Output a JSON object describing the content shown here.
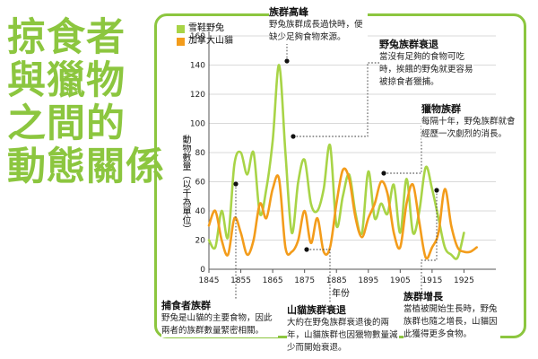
{
  "title_lines": [
    "掠食者",
    "與獵物",
    "之間的",
    "動態關係"
  ],
  "colors": {
    "hare": "#a8d447",
    "lynx": "#f39c1b",
    "accent": "#8cc63f"
  },
  "legend": [
    {
      "name": "雪鞋野兔",
      "color": "#a8d447"
    },
    {
      "name": "加拿大山貓",
      "color": "#f39c1b"
    }
  ],
  "callouts": {
    "peak": {
      "title": "族群高峰",
      "text": "野兔族群成長過快時，便缺少足夠食物來源。"
    },
    "hare_decline": {
      "title": "野兔族群衰退",
      "text": "當沒有足夠的食物可吃時，挨餓的野兔就更容易被掠食者獵捕。"
    },
    "prey": {
      "title": "獵物族群",
      "text": "每隔十年，野兔族群就會經歷一次劇烈的消長。"
    },
    "predator": {
      "title": "捕食者族群",
      "text": "野兔是山貓的主要食物，因此兩者的族群數量緊密相關。"
    },
    "lynx_decline": {
      "title": "山貓族群衰退",
      "text": "大約在野兔族群衰退後的兩年，山貓族群也因獵物數量減少而開始衰退。"
    },
    "growth": {
      "title": "族群增長",
      "text": "當植被開始生長時，野兔族群也隨之增長，山貓因此獲得更多食物。"
    }
  },
  "chart_data": {
    "type": "line",
    "xlabel": "年份",
    "ylabel": "動物數量（以千為單位）",
    "xlim": [
      1845,
      1935
    ],
    "ylim": [
      0,
      160
    ],
    "x_ticks": [
      1845,
      1855,
      1865,
      1875,
      1885,
      1895,
      1905,
      1915,
      1925
    ],
    "y_ticks": [
      0,
      20,
      40,
      60,
      80,
      100,
      120,
      140,
      160
    ],
    "grid": "horizontal",
    "series": [
      {
        "name": "雪鞋野兔",
        "color": "#a8d447",
        "x": [
          1845,
          1847,
          1849,
          1851,
          1853,
          1855,
          1857,
          1859,
          1861,
          1863,
          1865,
          1867,
          1869,
          1871,
          1873,
          1875,
          1877,
          1879,
          1881,
          1883,
          1885,
          1887,
          1889,
          1891,
          1893,
          1895,
          1897,
          1899,
          1901,
          1903,
          1905,
          1907,
          1909,
          1911,
          1913,
          1915,
          1917,
          1919,
          1921,
          1923,
          1925
        ],
        "y": [
          20,
          15,
          40,
          22,
          72,
          80,
          65,
          80,
          38,
          55,
          88,
          140,
          80,
          25,
          60,
          75,
          45,
          40,
          55,
          85,
          30,
          50,
          65,
          38,
          25,
          67,
          35,
          45,
          38,
          58,
          25,
          62,
          25,
          40,
          70,
          55,
          35,
          15,
          10,
          8,
          25
        ]
      },
      {
        "name": "加拿大山貓",
        "color": "#f39c1b",
        "x": [
          1845,
          1847,
          1849,
          1851,
          1853,
          1855,
          1857,
          1859,
          1861,
          1863,
          1865,
          1867,
          1869,
          1871,
          1873,
          1875,
          1877,
          1879,
          1881,
          1883,
          1885,
          1887,
          1889,
          1891,
          1893,
          1895,
          1897,
          1899,
          1901,
          1903,
          1905,
          1907,
          1909,
          1911,
          1913,
          1915,
          1917,
          1919,
          1921,
          1923,
          1925,
          1927,
          1929
        ],
        "y": [
          30,
          40,
          20,
          10,
          35,
          25,
          10,
          20,
          45,
          35,
          55,
          62,
          15,
          12,
          20,
          40,
          18,
          35,
          12,
          15,
          45,
          68,
          62,
          35,
          22,
          35,
          45,
          60,
          52,
          25,
          15,
          45,
          58,
          32,
          8,
          15,
          25,
          55,
          30,
          15,
          12,
          12,
          15
        ]
      }
    ]
  }
}
